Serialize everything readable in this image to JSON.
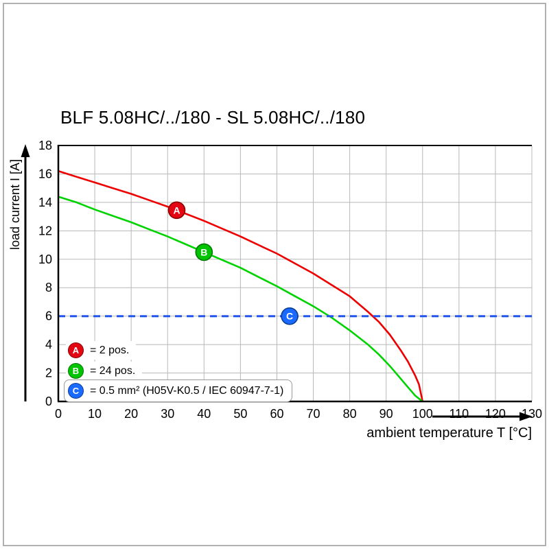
{
  "title": "BLF 5.08HC/../180 - SL 5.08HC/../180",
  "chart_data": {
    "type": "line",
    "title": "BLF 5.08HC/../180 - SL 5.08HC/../180",
    "xlabel": "ambient temperature T [°C]",
    "ylabel": "load current I [A]",
    "xlim": [
      0,
      130
    ],
    "ylim": [
      0,
      18
    ],
    "grid": true,
    "legend_position": "bottom-left inside plot",
    "x_ticks": [
      0,
      10,
      20,
      30,
      40,
      50,
      60,
      70,
      80,
      90,
      100,
      110,
      120,
      130
    ],
    "y_ticks": [
      0,
      2,
      4,
      6,
      8,
      10,
      12,
      14,
      16,
      18
    ],
    "series": [
      {
        "name": "A",
        "label": "= 2 pos.",
        "color": "#ee0000",
        "marker_fill": "#e30613",
        "marker_stroke": "#8a0000",
        "marker_at": {
          "x": 32.5,
          "y": 13.45
        },
        "points": [
          [
            0,
            16.2
          ],
          [
            5,
            15.8
          ],
          [
            10,
            15.4
          ],
          [
            15,
            15.0
          ],
          [
            20,
            14.6
          ],
          [
            25,
            14.15
          ],
          [
            30,
            13.7
          ],
          [
            35,
            13.2
          ],
          [
            40,
            12.7
          ],
          [
            45,
            12.15
          ],
          [
            50,
            11.6
          ],
          [
            55,
            11.0
          ],
          [
            60,
            10.4
          ],
          [
            65,
            9.7
          ],
          [
            70,
            9.0
          ],
          [
            75,
            8.2
          ],
          [
            80,
            7.4
          ],
          [
            85,
            6.3
          ],
          [
            88,
            5.6
          ],
          [
            91,
            4.7
          ],
          [
            94,
            3.6
          ],
          [
            96,
            2.8
          ],
          [
            98,
            1.8
          ],
          [
            99,
            1.2
          ],
          [
            100,
            0
          ]
        ]
      },
      {
        "name": "B",
        "label": "= 24 pos.",
        "color": "#00d300",
        "marker_fill": "#00c400",
        "marker_stroke": "#007700",
        "marker_at": {
          "x": 40,
          "y": 10.5
        },
        "points": [
          [
            0,
            14.4
          ],
          [
            5,
            14.0
          ],
          [
            10,
            13.5
          ],
          [
            15,
            13.05
          ],
          [
            20,
            12.6
          ],
          [
            25,
            12.1
          ],
          [
            30,
            11.6
          ],
          [
            35,
            11.05
          ],
          [
            40,
            10.5
          ],
          [
            45,
            9.95
          ],
          [
            50,
            9.4
          ],
          [
            55,
            8.75
          ],
          [
            60,
            8.1
          ],
          [
            65,
            7.4
          ],
          [
            70,
            6.7
          ],
          [
            75,
            5.9
          ],
          [
            80,
            5.0
          ],
          [
            85,
            4.0
          ],
          [
            88,
            3.3
          ],
          [
            91,
            2.5
          ],
          [
            94,
            1.6
          ],
          [
            96,
            1.0
          ],
          [
            98,
            0.4
          ],
          [
            100,
            0
          ]
        ]
      },
      {
        "name": "C",
        "label": "= 0.5 mm² (H05V-K0.5 / IEC 60947-7-1)",
        "color": "#2255ee",
        "dashed": true,
        "marker_fill": "#1a6aff",
        "marker_stroke": "#0a3d91",
        "marker_at": {
          "x": 63.5,
          "y": 6
        },
        "points": [
          [
            0,
            6
          ],
          [
            130,
            6
          ]
        ]
      }
    ]
  }
}
